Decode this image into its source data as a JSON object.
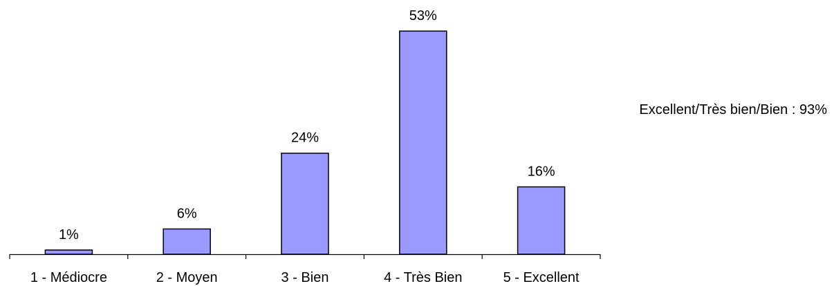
{
  "chart_data": {
    "type": "bar",
    "categories": [
      "1 - Médiocre",
      "2 - Moyen",
      "3 - Bien",
      "4 - Très Bien",
      "5 - Excellent"
    ],
    "values": [
      1,
      6,
      24,
      53,
      16
    ],
    "value_labels": [
      "1%",
      "6%",
      "24%",
      "53%",
      "16%"
    ],
    "unit": "%",
    "title": "",
    "xlabel": "",
    "ylabel": "",
    "ylim": [
      0,
      53
    ],
    "grid": false,
    "legend": "none",
    "annotations": [
      "Excellent/Très bien/Bien : 93%"
    ],
    "colors": {
      "bar_fill": "#9999ff",
      "bar_stroke": "#000000",
      "axis": "#000000",
      "text": "#000000"
    }
  }
}
